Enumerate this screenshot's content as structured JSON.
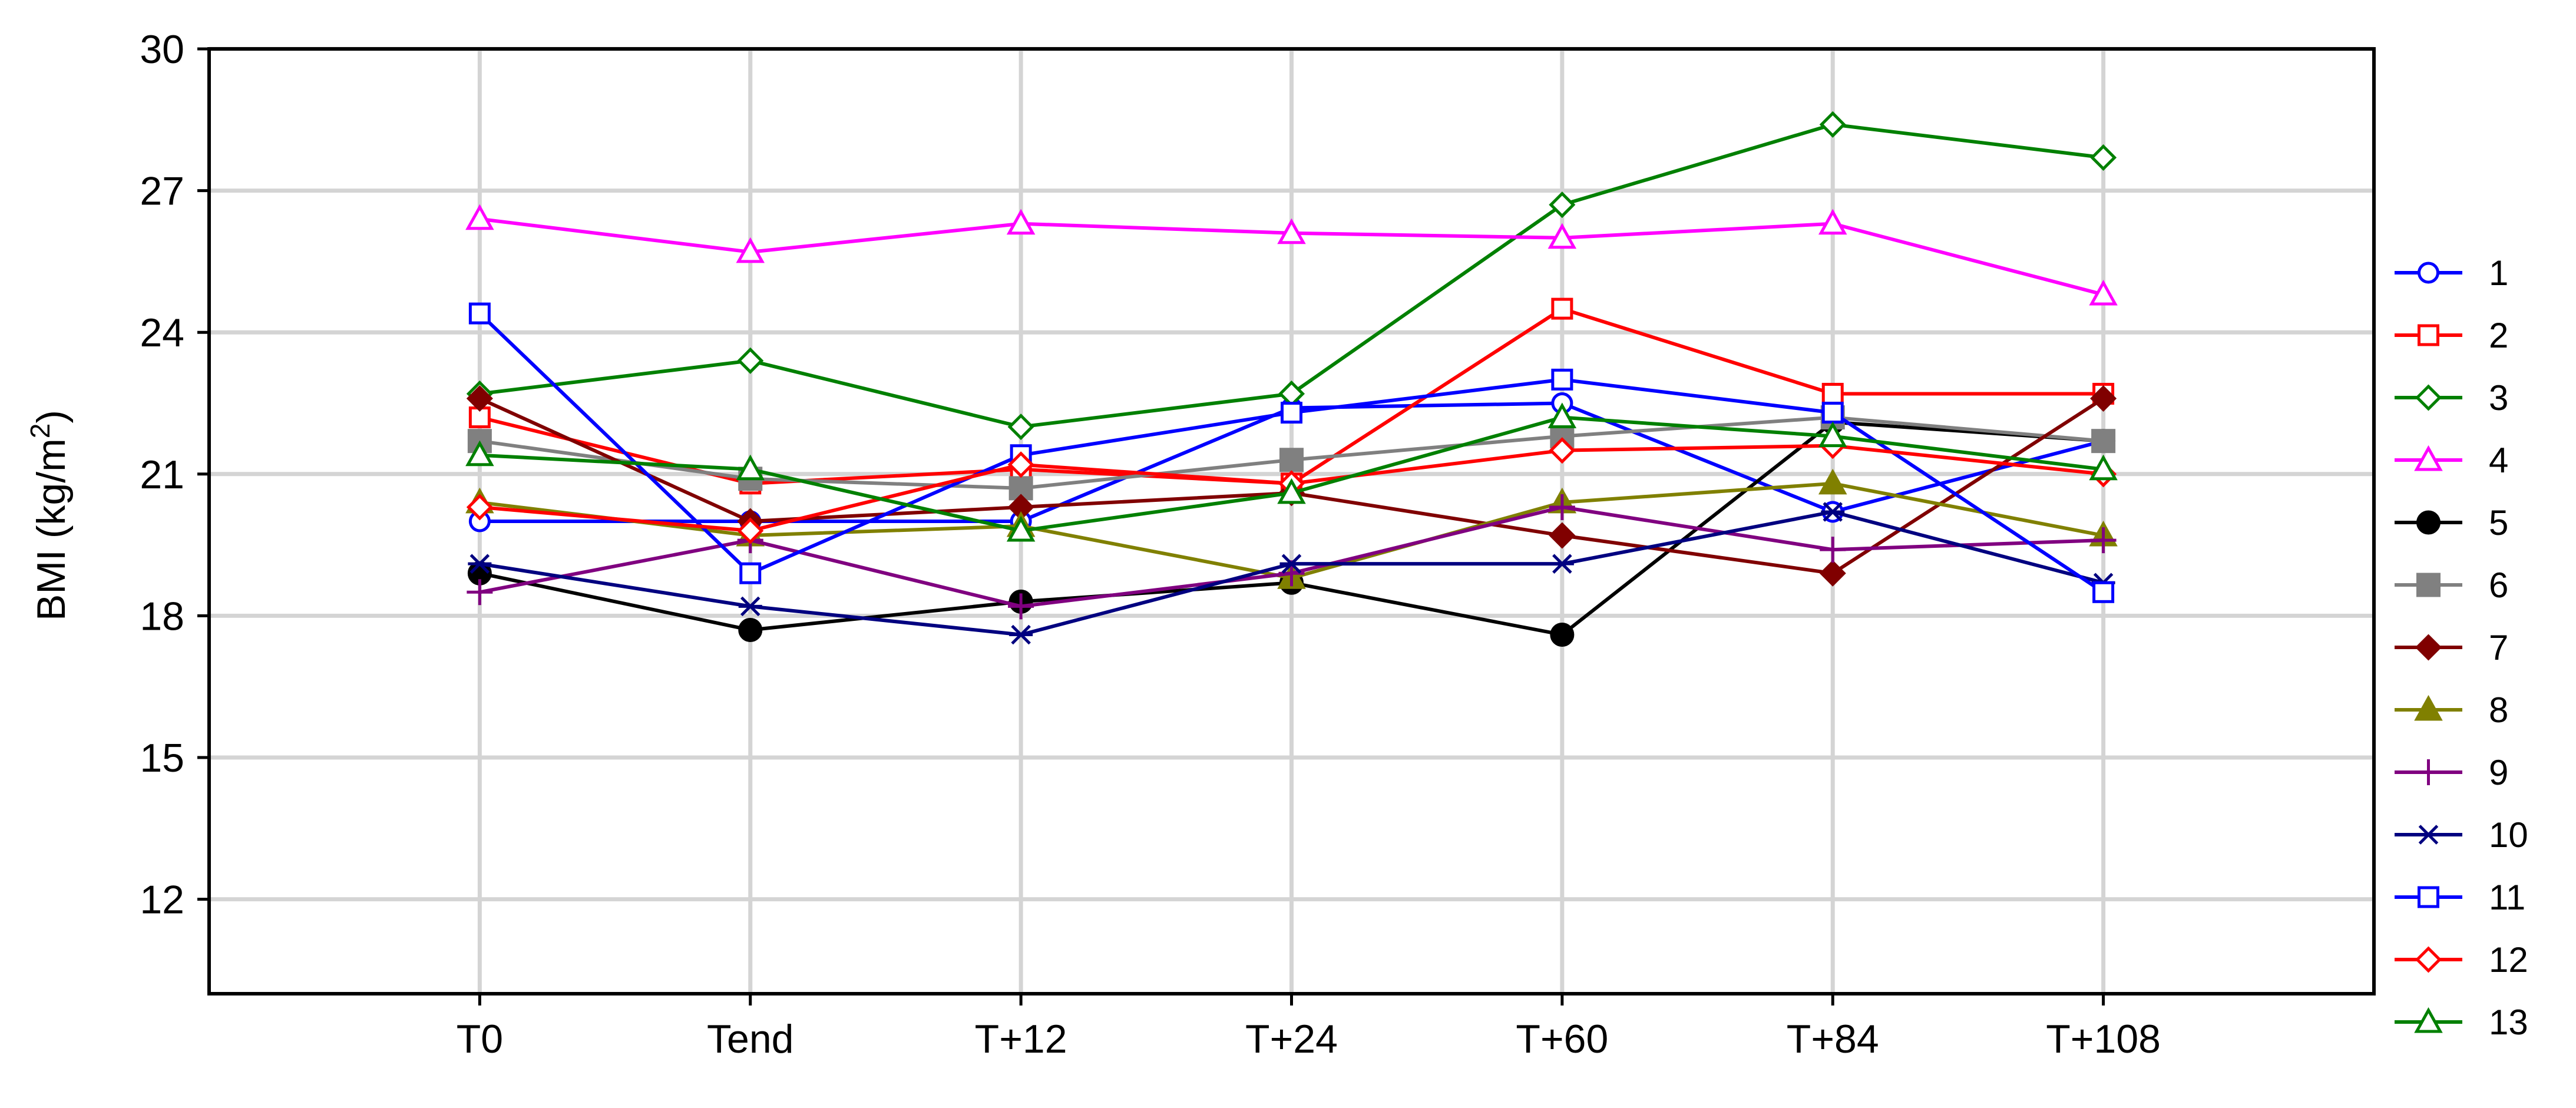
{
  "chart_data": {
    "type": "line",
    "title": "",
    "xlabel": "",
    "ylabel": "BMI (kg/m",
    "ylabel_sup": "2",
    "ylabel_close": ")",
    "categories": [
      "T0",
      "Tend",
      "T+12",
      "T+24",
      "T+60",
      "T+84",
      "T+108"
    ],
    "ylim": [
      10,
      30
    ],
    "yticks": [
      12,
      15,
      18,
      21,
      24,
      27,
      30
    ],
    "grid": true,
    "legend_position": "right",
    "series": [
      {
        "name": "1",
        "color": "#0000FF",
        "marker": "circle-open",
        "values": [
          20.0,
          20.0,
          20.0,
          22.4,
          22.5,
          20.2,
          21.7
        ]
      },
      {
        "name": "2",
        "color": "#FF0000",
        "marker": "square-open",
        "values": [
          22.2,
          20.8,
          21.1,
          20.8,
          24.5,
          22.7,
          22.7
        ]
      },
      {
        "name": "3",
        "color": "#008000",
        "marker": "diamond-open",
        "values": [
          22.7,
          23.4,
          22.0,
          22.7,
          26.7,
          28.4,
          27.7
        ]
      },
      {
        "name": "4",
        "color": "#FF00FF",
        "marker": "triangle-open",
        "values": [
          26.4,
          25.7,
          26.3,
          26.1,
          26.0,
          26.3,
          24.8
        ]
      },
      {
        "name": "5",
        "color": "#000000",
        "marker": "circle-filled",
        "values": [
          18.9,
          17.7,
          18.3,
          18.7,
          17.6,
          22.1,
          21.7
        ]
      },
      {
        "name": "6",
        "color": "#808080",
        "marker": "square-filled",
        "values": [
          21.7,
          20.9,
          20.7,
          21.3,
          21.8,
          22.2,
          21.7
        ]
      },
      {
        "name": "7",
        "color": "#800000",
        "marker": "diamond-filled",
        "values": [
          22.6,
          20.0,
          20.3,
          20.6,
          19.7,
          18.9,
          22.6
        ]
      },
      {
        "name": "8",
        "color": "#808000",
        "marker": "triangle-filled",
        "values": [
          20.4,
          19.7,
          19.9,
          18.8,
          20.4,
          20.8,
          19.7
        ]
      },
      {
        "name": "9",
        "color": "#800080",
        "marker": "plus",
        "values": [
          18.5,
          19.6,
          18.2,
          18.9,
          20.3,
          19.4,
          19.6
        ]
      },
      {
        "name": "10",
        "color": "#000080",
        "marker": "asterisk",
        "values": [
          19.1,
          18.2,
          17.6,
          19.1,
          19.1,
          20.2,
          18.7
        ]
      },
      {
        "name": "11",
        "color": "#0000FF",
        "marker": "square-open",
        "values": [
          24.4,
          18.9,
          21.4,
          22.3,
          23.0,
          22.3,
          18.5
        ]
      },
      {
        "name": "12",
        "color": "#FF0000",
        "marker": "diamond-open",
        "values": [
          20.3,
          19.8,
          21.2,
          20.8,
          21.5,
          21.6,
          21.0
        ]
      },
      {
        "name": "13",
        "color": "#008000",
        "marker": "triangle-open",
        "values": [
          21.4,
          21.1,
          19.8,
          20.6,
          22.2,
          21.8,
          21.1
        ]
      }
    ]
  }
}
